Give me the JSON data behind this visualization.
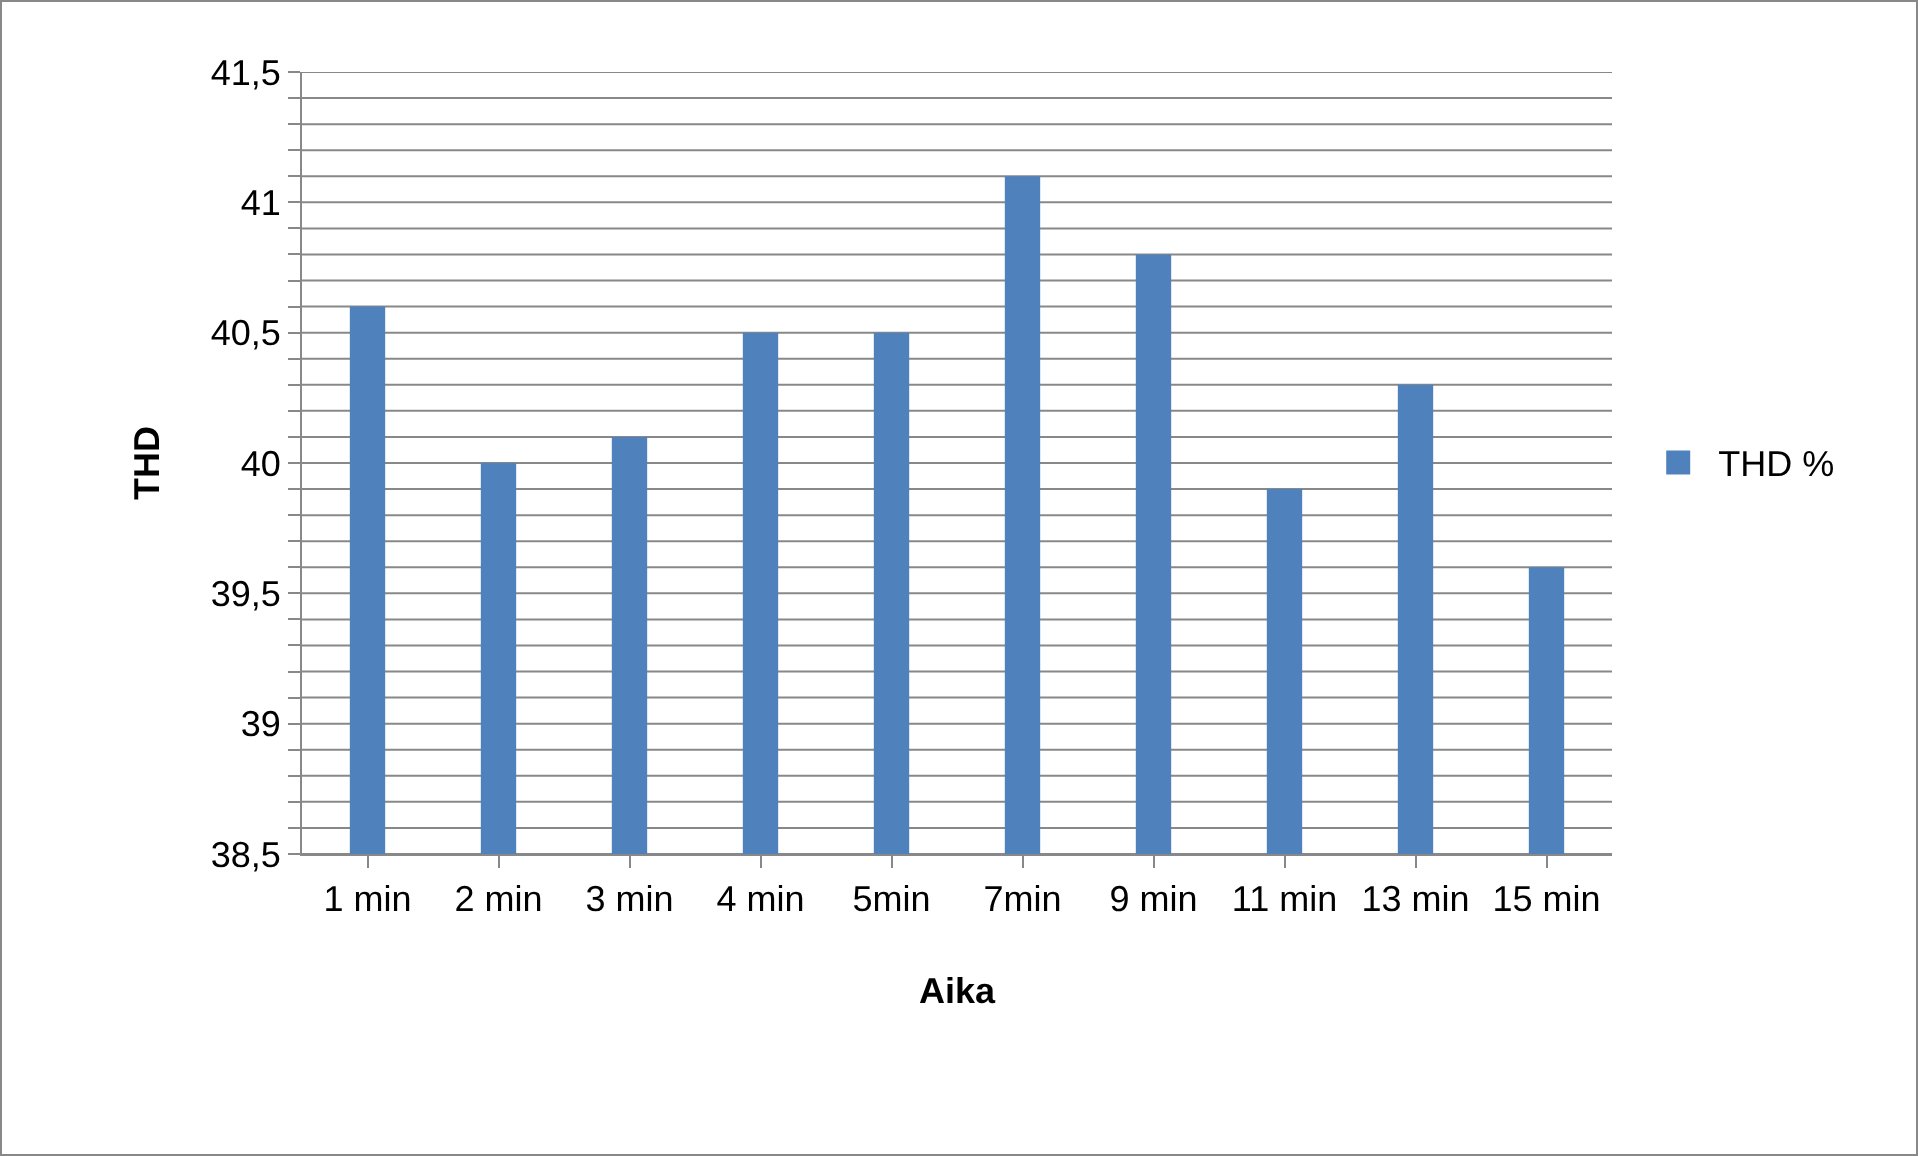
{
  "chart_data": {
    "type": "bar",
    "xlabel": "Aika",
    "ylabel": "THD",
    "categories": [
      "1 min",
      "2 min",
      "3 min",
      "4 min",
      "5min",
      "7min",
      "9 min",
      "11 min",
      "13 min",
      "15 min"
    ],
    "series": [
      {
        "name": "THD %",
        "color": "#4f81bd",
        "values": [
          40.6,
          40.0,
          40.1,
          40.5,
          40.5,
          41.1,
          40.8,
          39.9,
          40.3,
          39.6
        ]
      }
    ],
    "ylim": [
      38.5,
      41.5
    ],
    "yticks": [
      {
        "value": 38.5,
        "label": "38,5"
      },
      {
        "value": 38.6,
        "label": null
      },
      {
        "value": 38.7,
        "label": null
      },
      {
        "value": 38.8,
        "label": null
      },
      {
        "value": 38.9,
        "label": null
      },
      {
        "value": 39,
        "label": "39"
      },
      {
        "value": 39.1,
        "label": null
      },
      {
        "value": 39.2,
        "label": null
      },
      {
        "value": 39.3,
        "label": null
      },
      {
        "value": 39.4,
        "label": null
      },
      {
        "value": 39.5,
        "label": "39,5"
      },
      {
        "value": 39.6,
        "label": null
      },
      {
        "value": 39.7,
        "label": null
      },
      {
        "value": 39.8,
        "label": null
      },
      {
        "value": 39.9,
        "label": null
      },
      {
        "value": 40,
        "label": "40"
      },
      {
        "value": 40.1,
        "label": null
      },
      {
        "value": 40.2,
        "label": null
      },
      {
        "value": 40.3,
        "label": null
      },
      {
        "value": 40.4,
        "label": null
      },
      {
        "value": 40.5,
        "label": "40,5"
      },
      {
        "value": 40.6,
        "label": null
      },
      {
        "value": 40.7,
        "label": null
      },
      {
        "value": 40.8,
        "label": null
      },
      {
        "value": 40.9,
        "label": null
      },
      {
        "value": 41,
        "label": "41"
      },
      {
        "value": 41.1,
        "label": null
      },
      {
        "value": 41.2,
        "label": null
      },
      {
        "value": 41.3,
        "label": null
      },
      {
        "value": 41.4,
        "label": null
      },
      {
        "value": 41.5,
        "label": "41,5"
      }
    ],
    "grid": "y",
    "legend": "right"
  }
}
